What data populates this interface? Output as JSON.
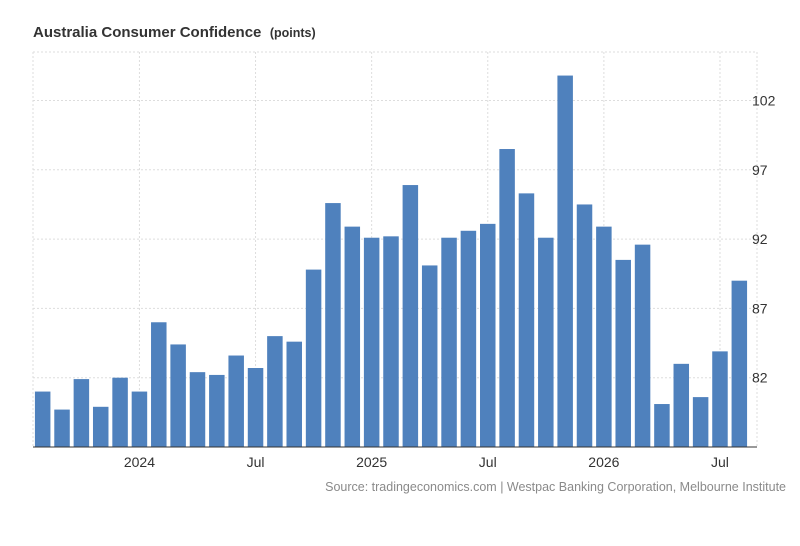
{
  "chart_data": {
    "type": "bar",
    "title": "Australia Consumer Confidence",
    "unit": "(points)",
    "source": "Source: tradingeconomics.com | Westpac Banking Corporation, Melbourne Institute",
    "x_tick_labels": [
      {
        "label": "2024",
        "at": "2024-01"
      },
      {
        "label": "Jul",
        "at": "2024-07"
      },
      {
        "label": "2025",
        "at": "2025-01"
      },
      {
        "label": "Jul",
        "at": "2025-07"
      },
      {
        "label": "2026",
        "at": "2026-01"
      },
      {
        "label": "Jul",
        "at": "2026-07"
      }
    ],
    "y_ticks": [
      82,
      87,
      92,
      97,
      102
    ],
    "ylim": [
      77,
      105.5
    ],
    "grid": true,
    "color": "#4f81bd",
    "categories": [
      "2023-08",
      "2023-09",
      "2023-10",
      "2023-11",
      "2023-12",
      "2024-01",
      "2024-02",
      "2024-03",
      "2024-04",
      "2024-05",
      "2024-06",
      "2024-07",
      "2024-08",
      "2024-09",
      "2024-10",
      "2024-11",
      "2024-12",
      "2025-01",
      "2025-02",
      "2025-03",
      "2025-04",
      "2025-05",
      "2025-06",
      "2025-07",
      "2025-08",
      "2025-09",
      "2025-10",
      "2025-11",
      "2025-12",
      "2026-01",
      "2026-02",
      "2026-03",
      "2026-04",
      "2026-05",
      "2026-06",
      "2026-07",
      "2026-08"
    ],
    "values": [
      81.0,
      79.7,
      81.9,
      79.9,
      82.0,
      81.0,
      86.0,
      84.4,
      82.4,
      82.2,
      83.6,
      82.7,
      85.0,
      84.6,
      89.8,
      94.6,
      92.9,
      92.1,
      92.2,
      95.9,
      90.1,
      92.1,
      92.6,
      93.1,
      98.5,
      95.3,
      92.1,
      103.8,
      94.5,
      92.9,
      90.5,
      91.6,
      80.1,
      83.0,
      80.6,
      83.9,
      89.0
    ]
  }
}
